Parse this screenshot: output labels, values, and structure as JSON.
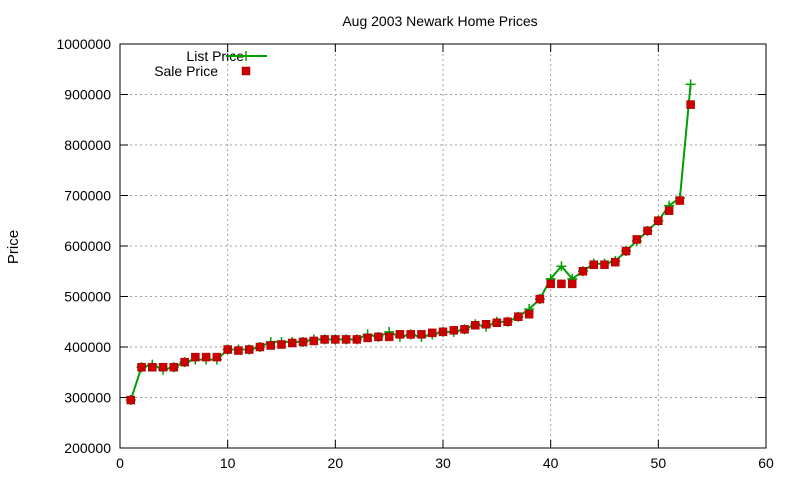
{
  "chart_data": {
    "type": "line",
    "title": "Aug 2003 Newark Home Prices",
    "xlabel": "",
    "ylabel": "Price",
    "xlim": [
      0,
      60
    ],
    "ylim": [
      200000,
      1000000
    ],
    "x_ticks": [
      0,
      10,
      20,
      30,
      40,
      50,
      60
    ],
    "y_ticks": [
      200000,
      300000,
      400000,
      500000,
      600000,
      700000,
      800000,
      900000,
      1000000
    ],
    "grid": true,
    "legend_position": "top-left",
    "series": [
      {
        "name": "List Price",
        "style": "line-with-plus-markers",
        "color": "#00a000",
        "x": [
          1,
          2,
          3,
          4,
          5,
          6,
          7,
          8,
          9,
          10,
          11,
          12,
          13,
          14,
          15,
          16,
          17,
          18,
          19,
          20,
          21,
          22,
          23,
          24,
          25,
          26,
          27,
          28,
          29,
          30,
          31,
          32,
          33,
          34,
          35,
          36,
          37,
          38,
          39,
          40,
          41,
          42,
          43,
          44,
          45,
          46,
          47,
          48,
          49,
          50,
          51,
          52,
          53
        ],
        "values": [
          295000,
          360000,
          365000,
          355000,
          360000,
          370000,
          375000,
          375000,
          375000,
          395000,
          395000,
          395000,
          400000,
          410000,
          410000,
          410000,
          410000,
          415000,
          415000,
          415000,
          415000,
          415000,
          425000,
          420000,
          430000,
          420000,
          425000,
          420000,
          425000,
          430000,
          430000,
          435000,
          445000,
          440000,
          450000,
          450000,
          460000,
          475000,
          495000,
          535000,
          560000,
          535000,
          550000,
          565000,
          565000,
          570000,
          590000,
          610000,
          630000,
          650000,
          680000,
          695000,
          920000
        ]
      },
      {
        "name": "Sale Price",
        "style": "square-markers",
        "color": "#cc0000",
        "x": [
          1,
          2,
          3,
          4,
          5,
          6,
          7,
          8,
          9,
          10,
          11,
          12,
          13,
          14,
          15,
          16,
          17,
          18,
          19,
          20,
          21,
          22,
          23,
          24,
          25,
          26,
          27,
          28,
          29,
          30,
          31,
          32,
          33,
          34,
          35,
          36,
          37,
          38,
          39,
          40,
          41,
          42,
          43,
          44,
          45,
          46,
          47,
          48,
          49,
          50,
          51,
          52,
          53
        ],
        "values": [
          295000,
          360000,
          360000,
          360000,
          360000,
          370000,
          380000,
          380000,
          380000,
          395000,
          393000,
          395000,
          400000,
          403000,
          405000,
          408000,
          410000,
          412000,
          415000,
          415000,
          415000,
          415000,
          418000,
          420000,
          420000,
          425000,
          425000,
          425000,
          428000,
          430000,
          433000,
          435000,
          443000,
          445000,
          448000,
          450000,
          460000,
          465000,
          495000,
          525000,
          525000,
          525000,
          550000,
          563000,
          563000,
          568000,
          590000,
          613000,
          630000,
          650000,
          670000,
          690000,
          880000
        ]
      }
    ]
  }
}
